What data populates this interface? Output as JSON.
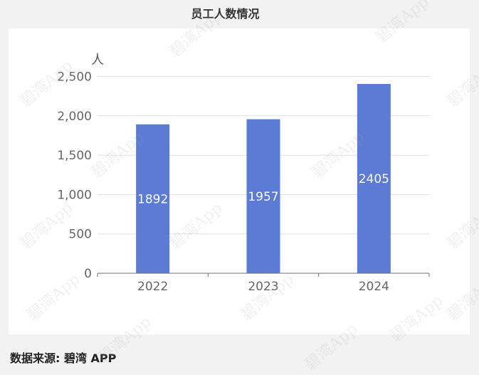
{
  "chart_data": {
    "type": "bar",
    "title": "员工人数情况",
    "ylabel": "人",
    "xlabel": "",
    "categories": [
      "2022",
      "2023",
      "2024"
    ],
    "series": [
      {
        "values": [
          1892,
          1957,
          2405
        ]
      }
    ],
    "data_labels": [
      "1892",
      "1957",
      "2405"
    ],
    "ylim": [
      0,
      2500
    ],
    "yticks": [
      0,
      500,
      1000,
      1500,
      2000,
      2500
    ],
    "ytick_labels": [
      "0",
      "500",
      "1,000",
      "1,500",
      "2,000",
      "2,500"
    ],
    "grid": true,
    "bar_color": "#5b7bd5"
  },
  "footer": {
    "source": "数据来源: 碧湾 APP"
  },
  "watermark": {
    "text": "碧湾App"
  }
}
